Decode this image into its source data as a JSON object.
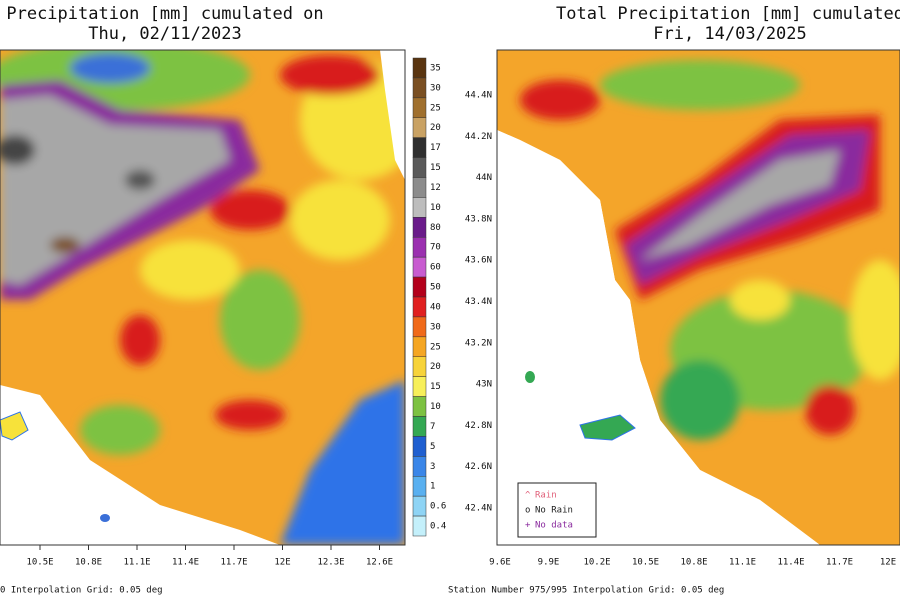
{
  "left_panel": {
    "title": "Precipitation [mm] cumulated on",
    "subtitle": "Thu, 02/11/2023",
    "colorbar_labels": [
      "35",
      "30",
      "25",
      "20",
      "17",
      "15",
      "12",
      "10",
      "80",
      "70",
      "60",
      "50",
      "40",
      "30",
      "25",
      "20",
      "15",
      "10",
      "7",
      "5",
      "3",
      "1",
      "0.6",
      "0.4"
    ],
    "x_labels": [
      "10.5E",
      "10.8E",
      "11.1E",
      "11.4E",
      "11.7E",
      "12E",
      "12.3E",
      "12.6E"
    ],
    "footer": "0 Interpolation Grid: 0.05 deg"
  },
  "right_panel": {
    "title": "Total Precipitation [mm] cumulated",
    "subtitle": "Fri, 14/03/2025",
    "y_labels": [
      "44.4N",
      "44.2N",
      "44N",
      "43.8N",
      "43.6N",
      "43.4N",
      "43.2N",
      "43N",
      "42.8N",
      "42.6N",
      "42.4N"
    ],
    "x_labels": [
      "9.6E",
      "9.9E",
      "10.2E",
      "10.5E",
      "10.8E",
      "11.1E",
      "11.4E",
      "11.7E",
      "12E"
    ],
    "legend": [
      "Rain",
      "No Rain",
      "No data"
    ],
    "footer": "Station Number 975/995 Interpolation Grid: 0.05 deg"
  }
}
